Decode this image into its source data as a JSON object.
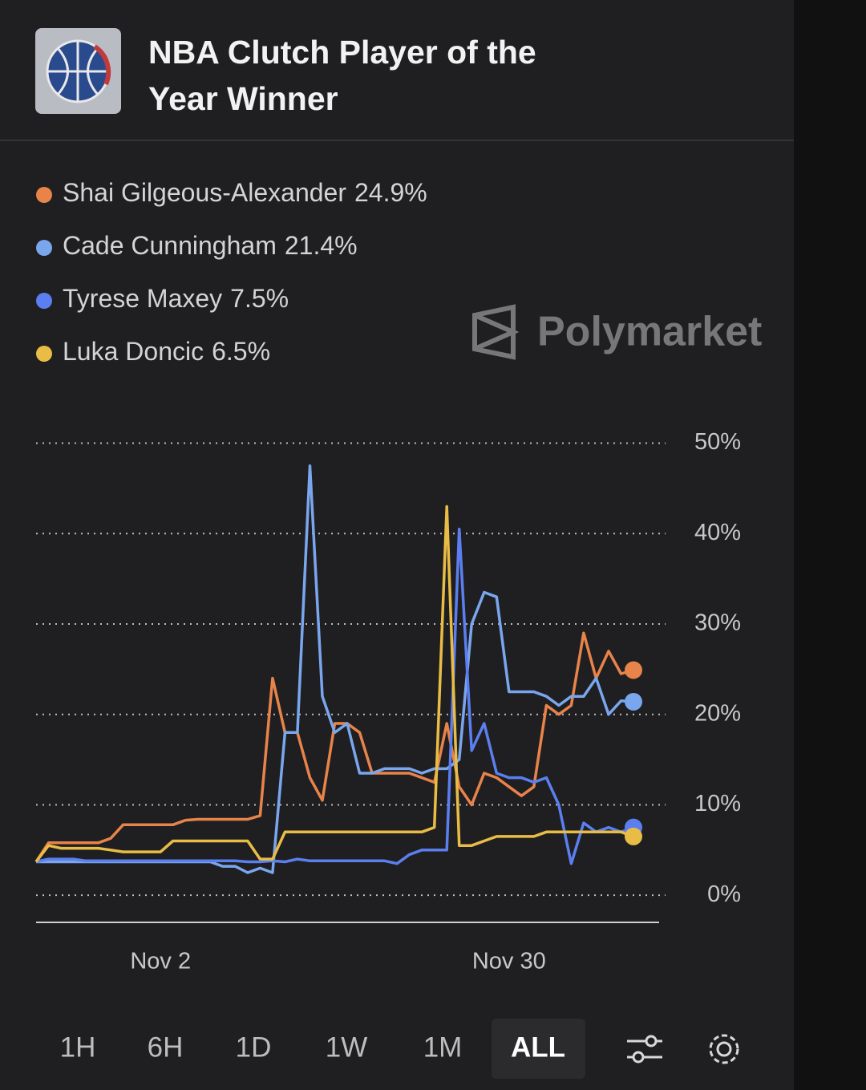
{
  "header": {
    "title": "NBA Clutch Player of the Year Winner"
  },
  "watermark": "Polymarket",
  "chart_data": {
    "type": "line",
    "x": [
      "Oct 23",
      "Oct 24",
      "Oct 25",
      "Oct 26",
      "Oct 27",
      "Oct 28",
      "Oct 29",
      "Oct 30",
      "Oct 31",
      "Nov 1",
      "Nov 2",
      "Nov 3",
      "Nov 4",
      "Nov 5",
      "Nov 6",
      "Nov 7",
      "Nov 8",
      "Nov 9",
      "Nov 10",
      "Nov 11",
      "Nov 12",
      "Nov 13",
      "Nov 14",
      "Nov 15",
      "Nov 16",
      "Nov 17",
      "Nov 18",
      "Nov 19",
      "Nov 20",
      "Nov 21",
      "Nov 22",
      "Nov 23",
      "Nov 24",
      "Nov 25",
      "Nov 26",
      "Nov 27",
      "Nov 28",
      "Nov 29",
      "Nov 30",
      "Dec 1",
      "Dec 2",
      "Dec 3",
      "Dec 4",
      "Dec 5",
      "Dec 6",
      "Dec 7",
      "Dec 8",
      "Dec 9",
      "Dec 10"
    ],
    "xticks": [
      "Nov 2",
      "Nov 30"
    ],
    "ylim": [
      -3,
      52
    ],
    "yticks": [
      {
        "value": 0,
        "label": "0%"
      },
      {
        "value": 10,
        "label": "10%"
      },
      {
        "value": 20,
        "label": "20%"
      },
      {
        "value": 30,
        "label": "30%"
      },
      {
        "value": 40,
        "label": "40%"
      },
      {
        "value": 50,
        "label": "50%"
      }
    ],
    "grid": true,
    "series": [
      {
        "name": "Shai Gilgeous-Alexander",
        "color": "#e8834a",
        "value_label": "24.9%",
        "values": [
          3.7,
          5.8,
          5.8,
          5.8,
          5.8,
          5.8,
          6.3,
          7.8,
          7.8,
          7.8,
          7.8,
          7.8,
          8.3,
          8.4,
          8.4,
          8.4,
          8.4,
          8.4,
          8.8,
          24,
          18,
          18,
          13,
          10.5,
          19,
          19,
          18,
          13.5,
          13.5,
          13.5,
          13.5,
          13,
          12.5,
          19,
          12,
          10,
          13.5,
          13,
          12,
          11,
          12,
          21,
          20,
          21,
          29,
          24,
          27,
          24.5,
          24.9
        ]
      },
      {
        "name": "Cade Cunningham",
        "color": "#7aa6ee",
        "value_label": "21.4%",
        "values": [
          3.7,
          3.7,
          3.7,
          3.7,
          3.7,
          3.7,
          3.7,
          3.7,
          3.7,
          3.7,
          3.7,
          3.7,
          3.7,
          3.7,
          3.7,
          3.2,
          3.2,
          2.5,
          3,
          2.5,
          18,
          18,
          47.5,
          22,
          18,
          19,
          13.5,
          13.5,
          14,
          14,
          14,
          13.5,
          14,
          14,
          15,
          30,
          33.5,
          33,
          22.5,
          22.5,
          22.5,
          22,
          21,
          22,
          22,
          24,
          20,
          21.5,
          21.4
        ]
      },
      {
        "name": "Tyrese Maxey",
        "color": "#5b7ff0",
        "value_label": "7.5%",
        "values": [
          3.7,
          4,
          4,
          4,
          3.8,
          3.8,
          3.8,
          3.8,
          3.8,
          3.8,
          3.8,
          3.8,
          3.8,
          3.8,
          3.8,
          3.8,
          3.8,
          3.7,
          3.7,
          3.8,
          3.7,
          4,
          3.8,
          3.8,
          3.8,
          3.8,
          3.8,
          3.8,
          3.8,
          3.5,
          4.5,
          5,
          5,
          5,
          40.5,
          16,
          19,
          13.5,
          13,
          13,
          12.5,
          13,
          10,
          3.5,
          8,
          7,
          7.5,
          7,
          7.5
        ]
      },
      {
        "name": "Luka Doncic",
        "color": "#e9bd45",
        "value_label": "6.5%",
        "values": [
          3.7,
          5.5,
          5.2,
          5.2,
          5.2,
          5.2,
          5,
          4.8,
          4.8,
          4.8,
          4.8,
          6,
          6,
          6,
          6,
          6,
          6,
          6,
          4,
          4,
          7,
          7,
          7,
          7,
          7,
          7,
          7,
          7,
          7,
          7,
          7,
          7,
          7.5,
          43,
          5.5,
          5.5,
          6,
          6.5,
          6.5,
          6.5,
          6.5,
          7,
          7,
          7,
          7,
          7,
          7,
          7,
          6.5
        ]
      }
    ]
  },
  "ranges": {
    "buttons": [
      "1H",
      "6H",
      "1D",
      "1W",
      "1M",
      "ALL"
    ],
    "active": "ALL"
  }
}
